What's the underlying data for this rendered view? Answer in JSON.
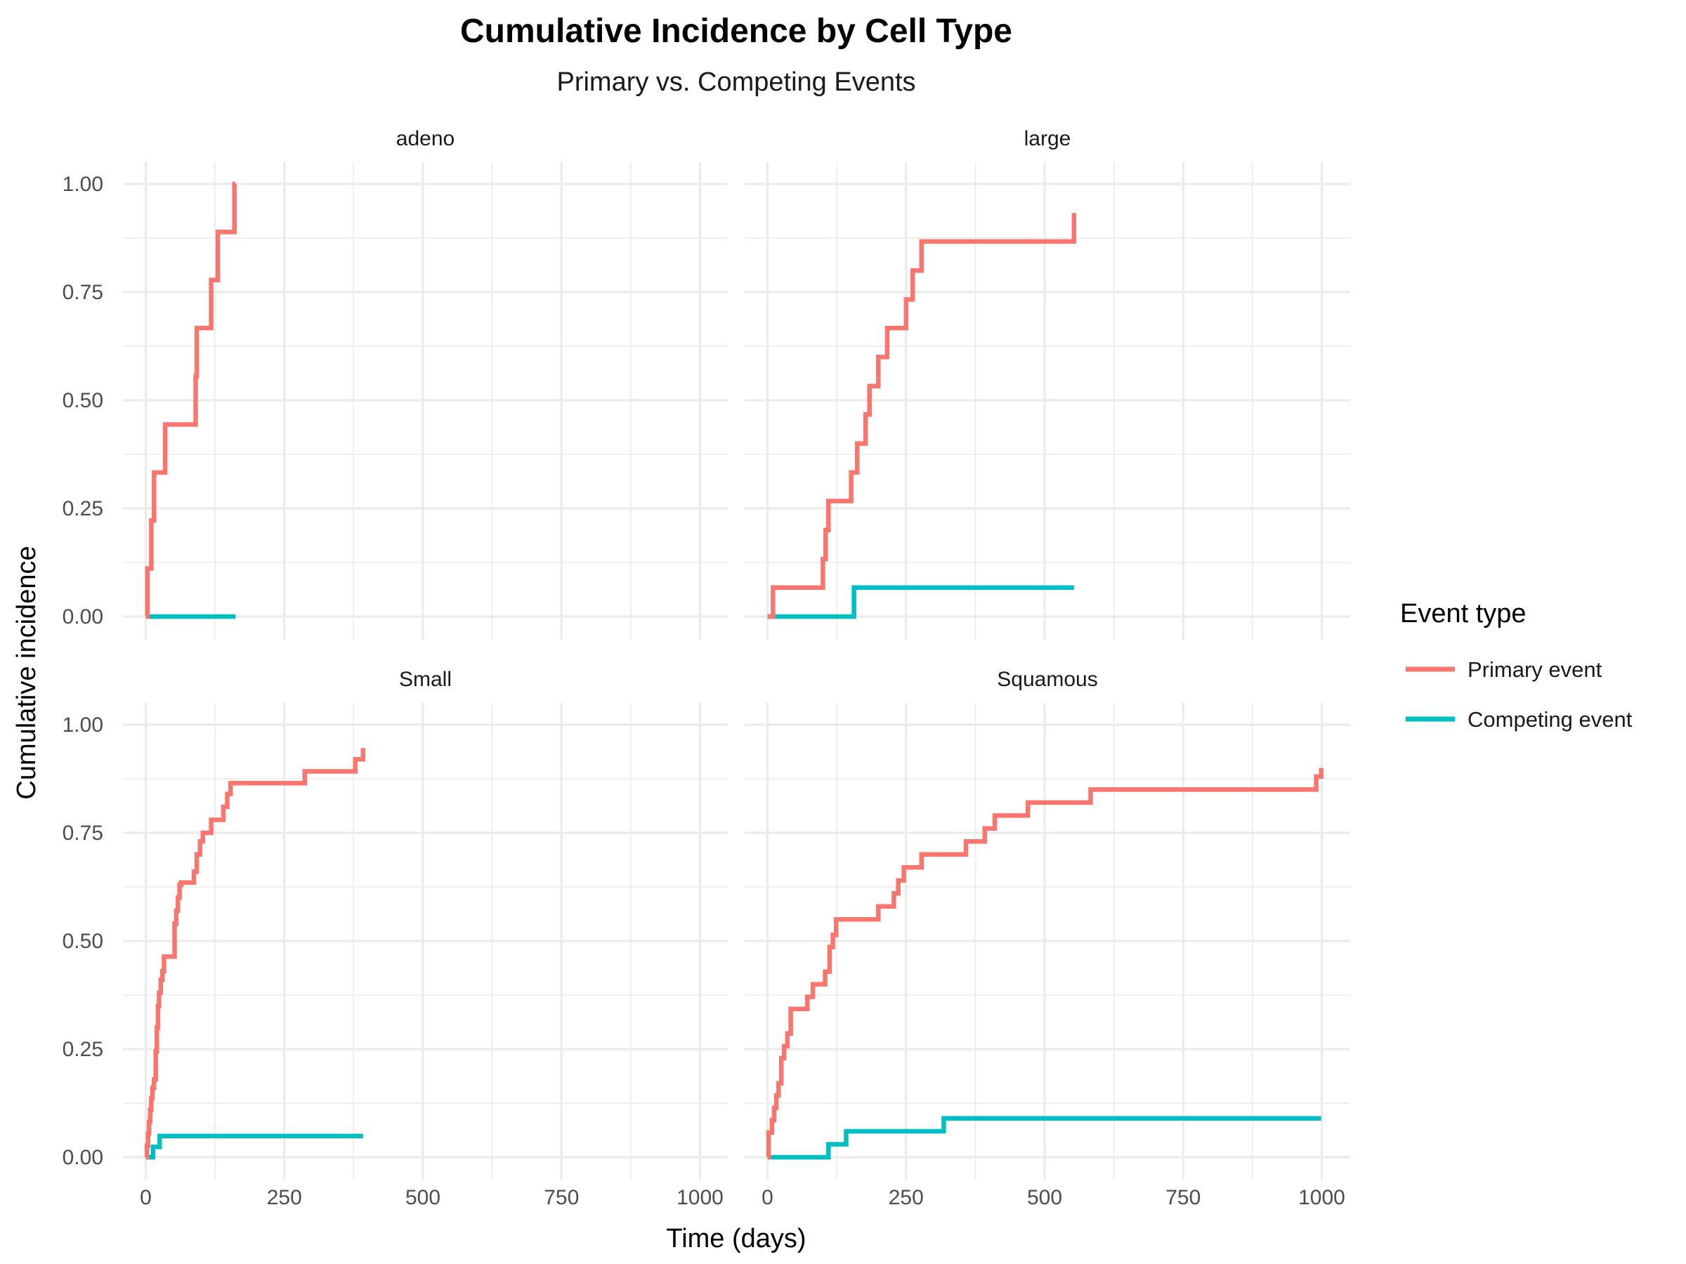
{
  "chart_data": {
    "type": "line",
    "title": "Cumulative Incidence by Cell Type",
    "subtitle": "Primary vs. Competing Events",
    "xlabel": "Time (days)",
    "ylabel": "Cumulative incidence",
    "xlim": [
      0,
      1000
    ],
    "ylim": [
      0,
      1
    ],
    "x_ticks": [
      0,
      250,
      500,
      750,
      1000
    ],
    "y_ticks": [
      0,
      0.25,
      0.5,
      0.75,
      1
    ],
    "x_tick_labels": [
      "0",
      "250",
      "500",
      "750",
      "1000"
    ],
    "y_tick_labels": [
      "0.00",
      "0.25",
      "0.50",
      "0.75",
      "1.00"
    ],
    "grid": true,
    "legend": {
      "title": "Event type",
      "position": "right",
      "entries": [
        {
          "label": "Primary event",
          "color": "#F8766D"
        },
        {
          "label": "Competing event",
          "color": "#00BFC4"
        }
      ]
    },
    "panels": [
      {
        "label": "adeno",
        "series": [
          {
            "name": "Primary event",
            "x": [
              0,
              3,
              10,
              15,
              18,
              35,
              90,
              92,
              118,
              130,
              160,
              162
            ],
            "y": [
              0,
              0.111,
              0.222,
              0.333,
              0.333,
              0.444,
              0.556,
              0.667,
              0.778,
              0.889,
              1.0,
              1.0
            ]
          },
          {
            "name": "Competing event",
            "x": [
              0,
              162
            ],
            "y": [
              0,
              0
            ]
          }
        ]
      },
      {
        "label": "large",
        "series": [
          {
            "name": "Primary event",
            "x": [
              0,
              10,
              100,
              105,
              110,
              132,
              151,
              162,
              177,
              184,
              200,
              216,
              231,
              250,
              262,
              278,
              540,
              553
            ],
            "y": [
              0,
              0.067,
              0.133,
              0.2,
              0.267,
              0.267,
              0.333,
              0.4,
              0.467,
              0.533,
              0.6,
              0.667,
              0.667,
              0.733,
              0.8,
              0.867,
              0.867,
              0.933
            ]
          },
          {
            "name": "Competing event",
            "x": [
              0,
              156,
              553
            ],
            "y": [
              0,
              0.067,
              0.067
            ]
          }
        ]
      },
      {
        "label": "Small",
        "series": [
          {
            "name": "Primary event",
            "x": [
              0,
              2,
              4,
              6,
              8,
              10,
              12,
              15,
              18,
              20,
              22,
              24,
              27,
              30,
              33,
              36,
              52,
              55,
              58,
              61,
              64,
              87,
              92,
              98,
              103,
              118,
              140,
              147,
              153,
              287,
              378,
              392
            ],
            "y": [
              0,
              0.027,
              0.055,
              0.082,
              0.11,
              0.137,
              0.16,
              0.18,
              0.245,
              0.3,
              0.35,
              0.38,
              0.41,
              0.43,
              0.464,
              0.464,
              0.54,
              0.57,
              0.6,
              0.63,
              0.635,
              0.66,
              0.7,
              0.73,
              0.75,
              0.78,
              0.81,
              0.84,
              0.865,
              0.892,
              0.92,
              0.946
            ]
          },
          {
            "name": "Competing event",
            "x": [
              0,
              13,
              25,
              392
            ],
            "y": [
              0,
              0.024,
              0.049,
              0.049
            ]
          }
        ]
      },
      {
        "label": "Squamous",
        "series": [
          {
            "name": "Primary event",
            "x": [
              0,
              2,
              8,
              12,
              16,
              20,
              25,
              30,
              36,
              42,
              72,
              82,
              104,
              112,
              118,
              124,
              140,
              200,
              228,
              236,
              246,
              278,
              358,
              392,
              410,
              470,
              583,
              990,
              999
            ],
            "y": [
              0,
              0.057,
              0.086,
              0.114,
              0.143,
              0.171,
              0.229,
              0.257,
              0.286,
              0.343,
              0.371,
              0.4,
              0.429,
              0.486,
              0.514,
              0.55,
              0.55,
              0.58,
              0.61,
              0.64,
              0.67,
              0.7,
              0.73,
              0.76,
              0.79,
              0.82,
              0.85,
              0.88,
              0.9
            ]
          },
          {
            "name": "Competing event",
            "x": [
              0,
              110,
              142,
              318,
              999
            ],
            "y": [
              0,
              0.03,
              0.06,
              0.09,
              0.09
            ]
          }
        ]
      }
    ]
  }
}
